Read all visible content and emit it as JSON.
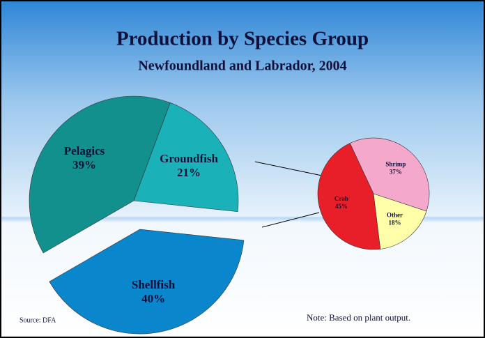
{
  "chart_data": [
    {
      "type": "pie",
      "title": "Production by Species Group",
      "subtitle": "Newfoundland and Labrador, 2004",
      "categories": [
        "Pelagics",
        "Groundfish",
        "Shellfish"
      ],
      "values": [
        39,
        21,
        40
      ],
      "value_labels": [
        "39%",
        "21%",
        "40%"
      ],
      "colors": [
        "#12908e",
        "#1ab2b8",
        "#0a86cc"
      ],
      "source": "Source: DFA",
      "note": "Note: Based on plant output."
    },
    {
      "type": "pie",
      "categories": [
        "Shrimp",
        "Other",
        "Crab"
      ],
      "values": [
        37,
        18,
        45
      ],
      "value_labels": [
        "37%",
        "18%",
        "45%"
      ],
      "colors": [
        "#f4a8cc",
        "#ffffaa",
        "#e81e28"
      ]
    }
  ]
}
